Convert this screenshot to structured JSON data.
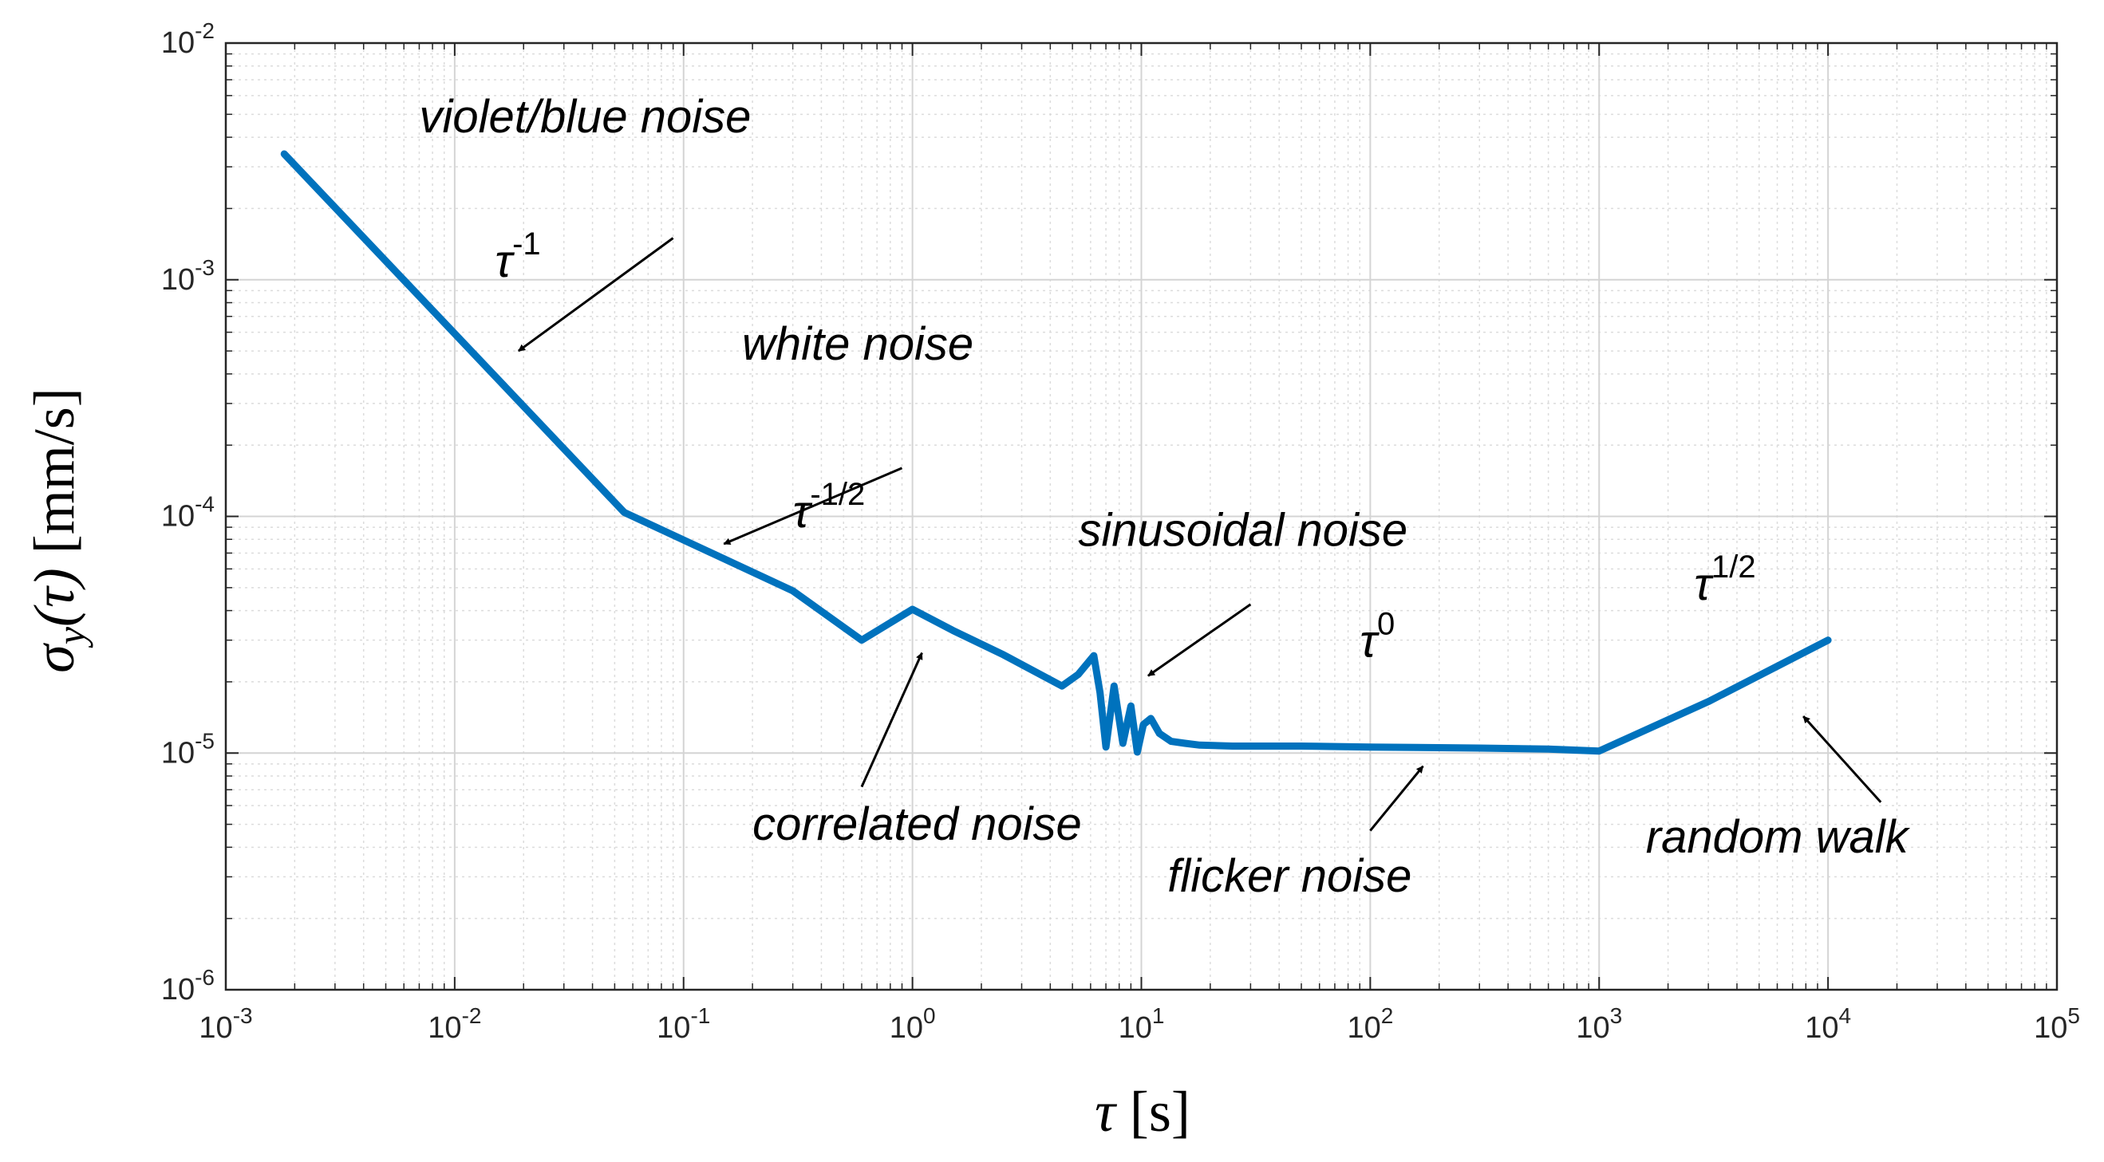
{
  "chart_data": {
    "type": "line",
    "x_scale": "log",
    "y_scale": "log",
    "xlim": [
      0.001,
      100000
    ],
    "ylim": [
      1e-06,
      0.01
    ],
    "grid": true,
    "minor_grid": true,
    "xlabel": {
      "symbol": "τ",
      "unit": "[s]"
    },
    "ylabel": {
      "symbol": "σ",
      "subscript": "y",
      "arg": "(τ)",
      "unit": "[mm/s]"
    },
    "x_ticks": [
      {
        "value": 0.001,
        "base": "10",
        "exp": "-3"
      },
      {
        "value": 0.01,
        "base": "10",
        "exp": "-2"
      },
      {
        "value": 0.1,
        "base": "10",
        "exp": "-1"
      },
      {
        "value": 1,
        "base": "10",
        "exp": "0"
      },
      {
        "value": 10,
        "base": "10",
        "exp": "1"
      },
      {
        "value": 100,
        "base": "10",
        "exp": "2"
      },
      {
        "value": 1000,
        "base": "10",
        "exp": "3"
      },
      {
        "value": 10000,
        "base": "10",
        "exp": "4"
      },
      {
        "value": 100000,
        "base": "10",
        "exp": "5"
      }
    ],
    "y_ticks": [
      {
        "value": 1e-06,
        "base": "10",
        "exp": "-6"
      },
      {
        "value": 1e-05,
        "base": "10",
        "exp": "-5"
      },
      {
        "value": 0.0001,
        "base": "10",
        "exp": "-4"
      },
      {
        "value": 0.001,
        "base": "10",
        "exp": "-3"
      },
      {
        "value": 0.01,
        "base": "10",
        "exp": "-2"
      }
    ],
    "series_color": "#0072BD",
    "series": [
      {
        "x": [
          0.0018,
          0.055,
          0.3,
          0.6,
          1.0,
          1.5,
          2.5,
          4.5,
          5.3,
          6.2,
          6.6,
          7.0,
          7.6,
          8.3,
          9.0,
          9.6,
          10.2,
          11.0,
          12.0,
          13.5,
          15.5,
          18,
          25,
          50,
          100,
          300,
          600,
          1000,
          3000,
          10000
        ],
        "y": [
          0.0034,
          0.000104,
          4.85e-05,
          3e-05,
          4.05e-05,
          3.3e-05,
          2.6e-05,
          1.92e-05,
          2.15e-05,
          2.58e-05,
          1.8e-05,
          1.06e-05,
          1.92e-05,
          1.1e-05,
          1.58e-05,
          1.01e-05,
          1.32e-05,
          1.4e-05,
          1.21e-05,
          1.12e-05,
          1.1e-05,
          1.08e-05,
          1.07e-05,
          1.07e-05,
          1.06e-05,
          1.05e-05,
          1.04e-05,
          1.02e-05,
          1.65e-05,
          3e-05
        ]
      }
    ],
    "annotations": [
      {
        "text": "violet/blue noise",
        "tx": 0.007,
        "ty": 0.0042,
        "ax_from": [
          0.09,
          0.0015
        ],
        "ax_to": [
          0.019,
          0.0005
        ]
      },
      {
        "text": "white noise",
        "tx": 0.18,
        "ty": 0.00046,
        "ax_from": [
          0.9,
          0.00016
        ],
        "ax_to": [
          0.15,
          7.65e-05
        ]
      },
      {
        "text": "sinusoidal noise",
        "tx": 5.3,
        "ty": 7.5e-05,
        "ax_from": [
          30,
          4.25e-05
        ],
        "ax_to": [
          10.7,
          2.12e-05
        ]
      },
      {
        "text": "correlated noise",
        "tx": 0.2,
        "ty": 4.3e-06,
        "ax_from": [
          0.6,
          7.2e-06
        ],
        "ax_to": [
          1.1,
          2.65e-05
        ]
      },
      {
        "text": "flicker noise",
        "tx": 13,
        "ty": 2.6e-06,
        "ax_from": [
          100,
          4.7e-06
        ],
        "ax_to": [
          170,
          8.8e-06
        ]
      },
      {
        "text": "random walk",
        "tx": 1600,
        "ty": 3.8e-06,
        "ax_from": [
          17000,
          6.2e-06
        ],
        "ax_to": [
          7800,
          1.43e-05
        ]
      }
    ],
    "slope_labels": [
      {
        "base": "τ",
        "exp": "-1",
        "x": 0.015,
        "y": 0.00103
      },
      {
        "base": "τ",
        "exp": "-1/2",
        "x": 0.3,
        "y": 9e-05
      },
      {
        "base": "τ",
        "exp": "0",
        "x": 90,
        "y": 2.55e-05
      },
      {
        "base": "τ",
        "exp": "1/2",
        "x": 2600,
        "y": 4.45e-05
      }
    ]
  }
}
